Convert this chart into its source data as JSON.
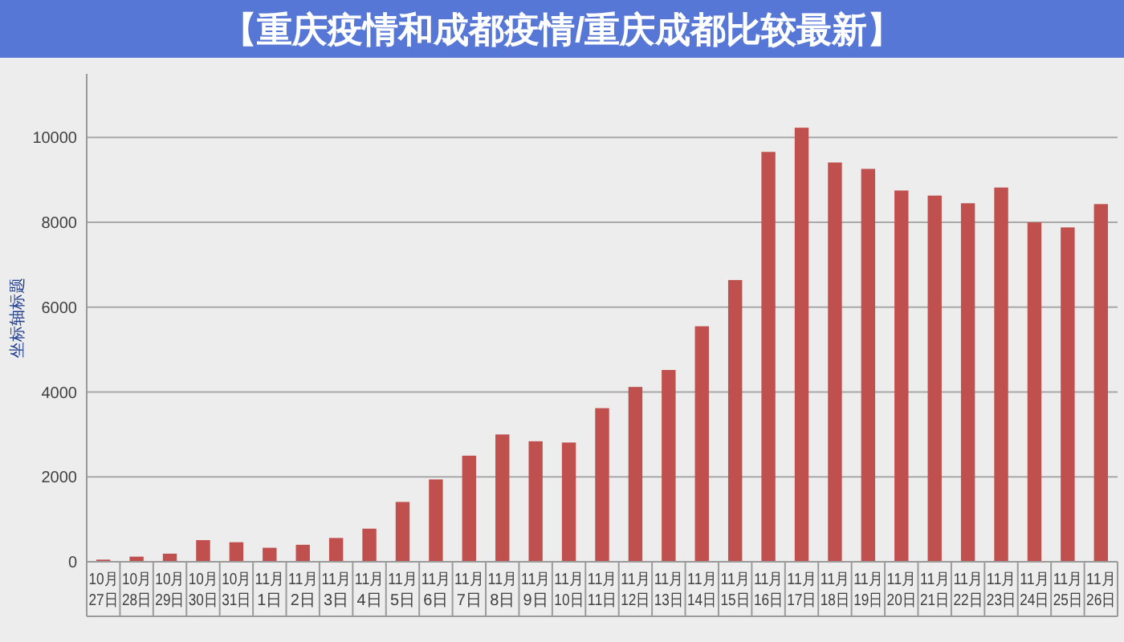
{
  "chart_data": {
    "type": "bar",
    "title": "【重庆疫情和成都疫情/重庆成都比较最新】",
    "ylabel": "坐标轴标题",
    "categories": [
      "10月27日",
      "10月28日",
      "10月29日",
      "10月30日",
      "10月31日",
      "11月1日",
      "11月2日",
      "11月3日",
      "11月4日",
      "11月5日",
      "11月6日",
      "11月7日",
      "11月8日",
      "11月9日",
      "11月10日",
      "11月11日",
      "11月12日",
      "11月13日",
      "11月14日",
      "11月15日",
      "11月16日",
      "11月17日",
      "11月18日",
      "11月19日",
      "11月20日",
      "11月21日",
      "11月22日",
      "11月23日",
      "11月24日",
      "11月25日",
      "11月26日"
    ],
    "values": [
      50,
      120,
      190,
      510,
      460,
      330,
      400,
      560,
      780,
      1410,
      1940,
      2500,
      3000,
      2840,
      2810,
      3620,
      4120,
      4520,
      5550,
      6640,
      9660,
      10230,
      9410,
      9260,
      8750,
      8630,
      8450,
      8820,
      8000,
      7880,
      8430
    ],
    "color": "#c0504d",
    "ylim": [
      0,
      11500
    ],
    "yticks": [
      0,
      2000,
      4000,
      6000,
      8000,
      10000
    ],
    "grid": "y"
  }
}
